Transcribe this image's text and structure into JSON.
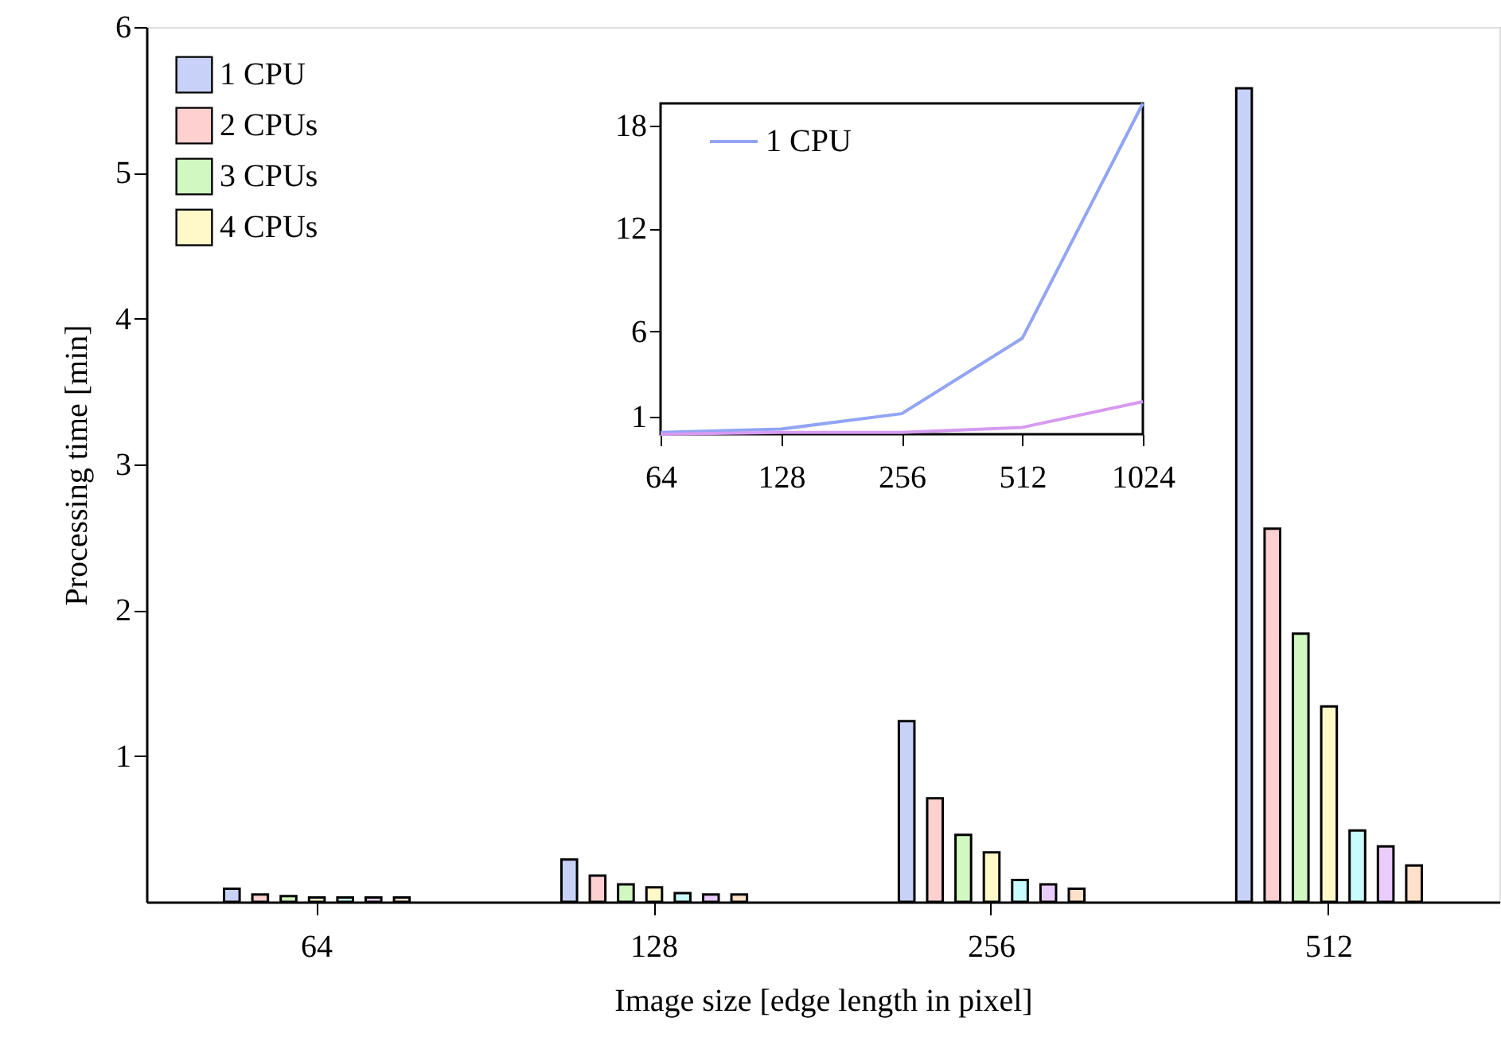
{
  "chart_data": [
    {
      "type": "bar",
      "xlabel": "Image size [edge length in pixel]",
      "ylabel": "Processing time [min]",
      "categories": [
        "64",
        "128",
        "256",
        "512"
      ],
      "ylim": [
        0,
        6
      ],
      "yticks": [
        1,
        2,
        3,
        4,
        5,
        6
      ],
      "grid": false,
      "legend": "top left",
      "series": [
        {
          "name": "1 CPU",
          "color": "#c8d2f8",
          "values": [
            0.09,
            0.29,
            1.24,
            5.58
          ]
        },
        {
          "name": "2 CPUs",
          "color": "#ffd0d0",
          "values": [
            0.05,
            0.18,
            0.71,
            2.56
          ]
        },
        {
          "name": "3 CPUs",
          "color": "#d0f8c0",
          "values": [
            0.04,
            0.12,
            0.46,
            1.84
          ]
        },
        {
          "name": "4 CPUs",
          "color": "#fff8c8",
          "values": [
            0.03,
            0.1,
            0.34,
            1.34
          ]
        },
        {
          "color": "#c8fcfc",
          "values": [
            0.03,
            0.06,
            0.15,
            0.49
          ]
        },
        {
          "color": "#e8ccfc",
          "values": [
            0.03,
            0.05,
            0.12,
            0.38
          ]
        },
        {
          "color": "#ffe0c8",
          "values": [
            0.03,
            0.05,
            0.09,
            0.25
          ]
        }
      ]
    },
    {
      "type": "line",
      "categories": [
        "64",
        "128",
        "256",
        "512",
        "1024"
      ],
      "ylim": [
        0,
        19.3
      ],
      "yticks": [
        1,
        6,
        12,
        18
      ],
      "grid": false,
      "legend": "top left",
      "line_style": "solid",
      "marker": "none",
      "series": [
        {
          "name": "1 CPU",
          "color": "#92a4f4",
          "values": [
            0.1,
            0.3,
            1.2,
            5.6,
            19.3
          ]
        },
        {
          "color": "#d69af0",
          "values": [
            0,
            0.1,
            0.1,
            0.4,
            1.9
          ]
        }
      ]
    }
  ]
}
